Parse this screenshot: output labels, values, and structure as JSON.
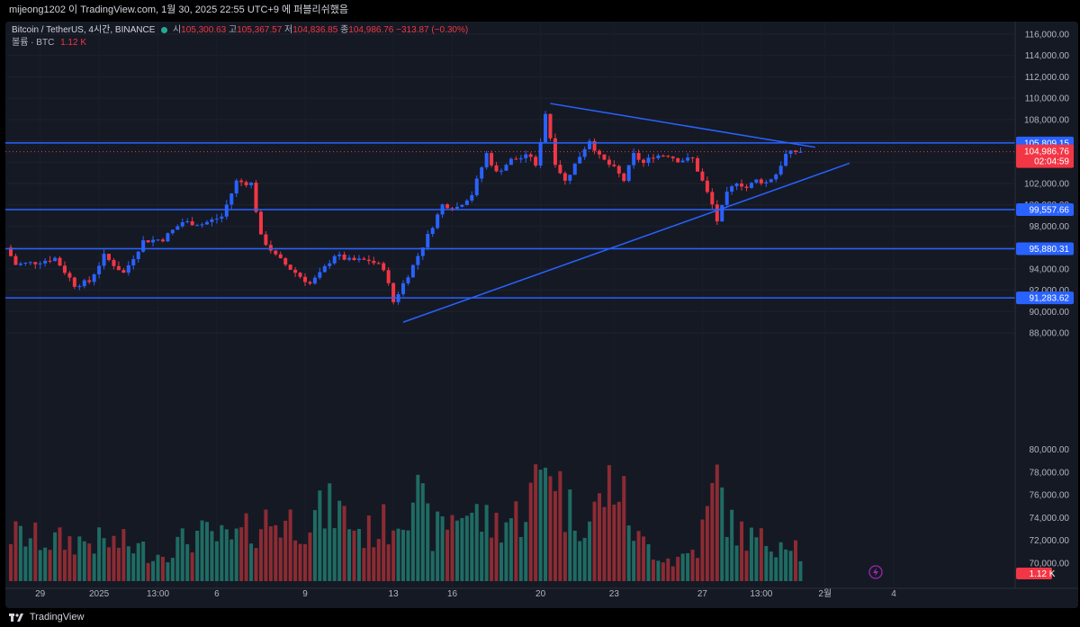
{
  "header": {
    "caption": "mijeong1202 이 TradingView.com, 1월 30, 2025 22:55 UTC+9 에 퍼블리쉬했음"
  },
  "legend": {
    "symbol": "Bitcoin / TetherUS, 4시간, BINANCE",
    "open_label": "시",
    "open": "105,300.63",
    "high_label": "고",
    "high": "105,367.57",
    "low_label": "저",
    "low": "104,836.85",
    "close_label": "종",
    "close": "104,986.76",
    "change": "−313.87 (−0.30%)",
    "volume_label": "볼륨 · BTC",
    "volume": "1.12 K"
  },
  "footer": {
    "brand": "TradingView"
  },
  "colors": {
    "up": "#2962ff",
    "down": "#f23645",
    "vol_up": "#1f6b63",
    "vol_down": "#8c2b33",
    "level_line": "#2962ff",
    "bg": "#151924"
  },
  "chart_data": {
    "type": "candlestick",
    "symbol": "BTCUSDT",
    "timeframe": "4h",
    "ylim": [
      87000,
      117000
    ],
    "y_ticks": [
      88000,
      90000,
      92000,
      94000,
      96000,
      98000,
      100000,
      102000,
      104000,
      106000,
      108000,
      110000,
      112000,
      114000,
      116000
    ],
    "y_tick_labels": [
      "88,000.00",
      "90,000.00",
      "92,000.00",
      "94,000.00",
      "96,000.00",
      "98,000.00",
      "100,000.00",
      "102,000.00",
      "104,000.00",
      "106,000.00",
      "108,000.00",
      "110,000.00",
      "112,000.00",
      "114,000.00",
      "116,000.00"
    ],
    "volume_y_ticks": [
      70000,
      72000,
      74000,
      76000,
      78000,
      80000
    ],
    "volume_y_tick_labels": [
      "70,000.00",
      "72,000.00",
      "74,000.00",
      "76,000.00",
      "78,000.00",
      "80,000.00"
    ],
    "x_labels": [
      {
        "bar": 6,
        "label": "29"
      },
      {
        "bar": 18,
        "label": "2025"
      },
      {
        "bar": 30,
        "label": "13:00"
      },
      {
        "bar": 42,
        "label": "6"
      },
      {
        "bar": 60,
        "label": "9"
      },
      {
        "bar": 78,
        "label": "13"
      },
      {
        "bar": 90,
        "label": "16"
      },
      {
        "bar": 108,
        "label": "20"
      },
      {
        "bar": 123,
        "label": "23"
      },
      {
        "bar": 141,
        "label": "27"
      },
      {
        "bar": 153,
        "label": "13:00"
      },
      {
        "bar": 166,
        "label": "2월"
      },
      {
        "bar": 180,
        "label": "4"
      }
    ],
    "bar_count_span": 190,
    "candle_keypoints": [
      [
        0,
        96000
      ],
      [
        2,
        94400
      ],
      [
        6,
        94600
      ],
      [
        10,
        95000
      ],
      [
        14,
        92500
      ],
      [
        17,
        92800
      ],
      [
        20,
        95200
      ],
      [
        24,
        93600
      ],
      [
        28,
        96600
      ],
      [
        32,
        96800
      ],
      [
        36,
        98400
      ],
      [
        40,
        98200
      ],
      [
        44,
        98900
      ],
      [
        47,
        102200
      ],
      [
        50,
        102000
      ],
      [
        52,
        97000
      ],
      [
        55,
        95200
      ],
      [
        58,
        94000
      ],
      [
        62,
        92600
      ],
      [
        64,
        93500
      ],
      [
        67,
        95300
      ],
      [
        70,
        94800
      ],
      [
        74,
        94800
      ],
      [
        77,
        94100
      ],
      [
        79,
        90900
      ],
      [
        81,
        92600
      ],
      [
        83,
        94300
      ],
      [
        86,
        97100
      ],
      [
        89,
        100000
      ],
      [
        92,
        99800
      ],
      [
        95,
        101000
      ],
      [
        98,
        104800
      ],
      [
        100,
        103000
      ],
      [
        103,
        104200
      ],
      [
        107,
        104600
      ],
      [
        108,
        103500
      ],
      [
        110,
        108600
      ],
      [
        112,
        104000
      ],
      [
        114,
        102200
      ],
      [
        117,
        104600
      ],
      [
        119,
        106100
      ],
      [
        121,
        104500
      ],
      [
        124,
        103400
      ],
      [
        126,
        102300
      ],
      [
        128,
        104700
      ],
      [
        130,
        103900
      ],
      [
        132,
        104600
      ],
      [
        135,
        104700
      ],
      [
        137,
        104200
      ],
      [
        140,
        104300
      ],
      [
        142,
        102200
      ],
      [
        144,
        100000
      ],
      [
        145,
        98500
      ],
      [
        147,
        101000
      ],
      [
        149,
        102200
      ],
      [
        151,
        101600
      ],
      [
        153,
        102300
      ],
      [
        155,
        102100
      ],
      [
        157,
        102900
      ],
      [
        159,
        104700
      ],
      [
        161,
        105000
      ]
    ],
    "volume_keypoints": [
      [
        0,
        0.35
      ],
      [
        8,
        0.3
      ],
      [
        15,
        0.3
      ],
      [
        23,
        0.28
      ],
      [
        30,
        0.2
      ],
      [
        38,
        0.35
      ],
      [
        45,
        0.3
      ],
      [
        52,
        0.45
      ],
      [
        60,
        0.45
      ],
      [
        66,
        0.55
      ],
      [
        72,
        0.35
      ],
      [
        78,
        0.45
      ],
      [
        82,
        0.7
      ],
      [
        86,
        0.35
      ],
      [
        92,
        0.55
      ],
      [
        98,
        0.42
      ],
      [
        104,
        0.5
      ],
      [
        108,
        0.78
      ],
      [
        110,
        1.0
      ],
      [
        113,
        0.55
      ],
      [
        118,
        0.45
      ],
      [
        123,
        0.78
      ],
      [
        128,
        0.3
      ],
      [
        135,
        0.15
      ],
      [
        140,
        0.25
      ],
      [
        142,
        0.5
      ],
      [
        144,
        0.75
      ],
      [
        147,
        0.4
      ],
      [
        152,
        0.3
      ],
      [
        156,
        0.3
      ],
      [
        159,
        0.35
      ],
      [
        161,
        0.2
      ]
    ],
    "levels": [
      {
        "price": 105809.15,
        "label": "105,809.15"
      },
      {
        "price": 99557.66,
        "label": "99,557.66"
      },
      {
        "price": 95880.31,
        "label": "95,880.31"
      },
      {
        "price": 91283.62,
        "label": "91,283.62"
      }
    ],
    "trendlines": [
      {
        "from": {
          "bar": 80,
          "price": 89000
        },
        "to": {
          "bar": 171,
          "price": 103900
        }
      },
      {
        "from": {
          "bar": 110,
          "price": 109500
        },
        "to": {
          "bar": 164,
          "price": 105400
        }
      }
    ],
    "last_price": {
      "price": 104986.76,
      "label": "104,986.76",
      "countdown": "02:04:59"
    },
    "last_volume": {
      "label": "1.12 K"
    }
  }
}
